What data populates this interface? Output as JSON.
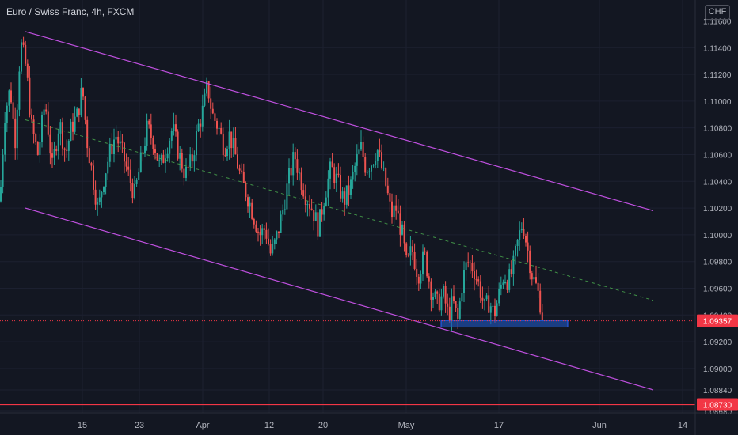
{
  "header": {
    "title": "Euro / Swiss Franc, 4h, FXCM",
    "currency": "CHF"
  },
  "chart_data": {
    "type": "candlestick",
    "symbol": "EURCHF",
    "ylim": [
      1.0868,
      1.1165
    ],
    "y_ticks": [
      "1.11600",
      "1.11400",
      "1.11200",
      "1.11000",
      "1.10800",
      "1.10600",
      "1.10400",
      "1.10200",
      "1.10000",
      "1.09800",
      "1.09600",
      "1.09400",
      "1.09200",
      "1.09000",
      "1.08840",
      "1.08680"
    ],
    "x_ticks": [
      "15",
      "23",
      "Apr",
      "12",
      "20",
      "May",
      "17",
      "Jun",
      "14"
    ],
    "price_path": [
      [
        0,
        1.1025
      ],
      [
        6,
        1.109
      ],
      [
        13,
        1.111
      ],
      [
        19,
        1.107
      ],
      [
        26,
        1.1144
      ],
      [
        33,
        1.1125
      ],
      [
        40,
        1.108
      ],
      [
        48,
        1.106
      ],
      [
        57,
        1.11
      ],
      [
        66,
        1.105
      ],
      [
        75,
        1.1085
      ],
      [
        83,
        1.106
      ],
      [
        90,
        1.108
      ],
      [
        98,
        1.109
      ],
      [
        104,
        1.111
      ],
      [
        110,
        1.107
      ],
      [
        118,
        1.104
      ],
      [
        124,
        1.1018
      ],
      [
        130,
        1.104
      ],
      [
        138,
        1.106
      ],
      [
        146,
        1.1075
      ],
      [
        155,
        1.106
      ],
      [
        162,
        1.1045
      ],
      [
        170,
        1.103
      ],
      [
        178,
        1.1055
      ],
      [
        186,
        1.108
      ],
      [
        194,
        1.107
      ],
      [
        202,
        1.105
      ],
      [
        210,
        1.1065
      ],
      [
        218,
        1.108
      ],
      [
        226,
        1.106
      ],
      [
        234,
        1.1045
      ],
      [
        242,
        1.1055
      ],
      [
        250,
        1.108
      ],
      [
        257,
        1.1095
      ],
      [
        262,
        1.1112
      ],
      [
        268,
        1.109
      ],
      [
        276,
        1.108
      ],
      [
        283,
        1.1065
      ],
      [
        290,
        1.1075
      ],
      [
        297,
        1.106
      ],
      [
        305,
        1.104
      ],
      [
        312,
        1.103
      ],
      [
        320,
        1.1015
      ],
      [
        328,
        1.1
      ],
      [
        335,
        1.1005
      ],
      [
        342,
        1.0985
      ],
      [
        348,
        1.0995
      ],
      [
        356,
        1.1015
      ],
      [
        364,
        1.104
      ],
      [
        372,
        1.106
      ],
      [
        378,
        1.1045
      ],
      [
        386,
        1.103
      ],
      [
        394,
        1.102
      ],
      [
        402,
        1.1005
      ],
      [
        410,
        1.103
      ],
      [
        418,
        1.105
      ],
      [
        426,
        1.104
      ],
      [
        434,
        1.1025
      ],
      [
        442,
        1.1035
      ],
      [
        450,
        1.1055
      ],
      [
        456,
        1.1065
      ],
      [
        462,
        1.105
      ],
      [
        470,
        1.1055
      ],
      [
        476,
        1.1065
      ],
      [
        482,
        1.105
      ],
      [
        488,
        1.1035
      ],
      [
        494,
        1.1015
      ],
      [
        500,
        1.102
      ],
      [
        508,
        1.1
      ],
      [
        514,
        1.0975
      ],
      [
        520,
        1.099
      ],
      [
        528,
        1.097
      ],
      [
        536,
        1.0985
      ],
      [
        544,
        1.096
      ],
      [
        552,
        1.0948
      ],
      [
        560,
        1.0955
      ],
      [
        566,
        1.094
      ],
      [
        572,
        1.095
      ],
      [
        578,
        1.0935
      ],
      [
        584,
        1.0965
      ],
      [
        590,
        1.098
      ],
      [
        598,
        1.0975
      ],
      [
        606,
        1.096
      ],
      [
        612,
        1.0945
      ],
      [
        618,
        1.095
      ],
      [
        624,
        1.094
      ],
      [
        630,
        1.0955
      ],
      [
        636,
        1.097
      ],
      [
        642,
        1.0965
      ],
      [
        648,
        1.0975
      ],
      [
        654,
        1.0995
      ],
      [
        660,
        1.101
      ],
      [
        666,
        1.099
      ],
      [
        672,
        1.097
      ],
      [
        678,
        1.096
      ],
      [
        682,
        1.095
      ],
      [
        686,
        1.0936
      ]
    ],
    "channel_upper": {
      "start": [
        32,
        1.1152
      ],
      "end": [
        825,
        1.1018
      ]
    },
    "channel_lower": {
      "start": [
        32,
        1.102
      ],
      "end": [
        825,
        1.0884
      ]
    },
    "channel_mid": {
      "start": [
        32,
        1.1086
      ],
      "end": [
        825,
        1.0951
      ]
    },
    "support_zone": {
      "x": [
        557,
        717
      ],
      "y": [
        1.0931,
        1.0936
      ],
      "color": "#1e53b8"
    },
    "current_price": {
      "value": "1.09357",
      "level": 1.09357,
      "color": "#f23645"
    },
    "level_line": {
      "value": "1.08730",
      "level": 1.0873,
      "color": "#f23645"
    },
    "colors": {
      "up": "#26a69a",
      "down": "#ef5350",
      "channel": "#c050e0",
      "mid": "#4caf50",
      "bg": "#131722"
    }
  }
}
